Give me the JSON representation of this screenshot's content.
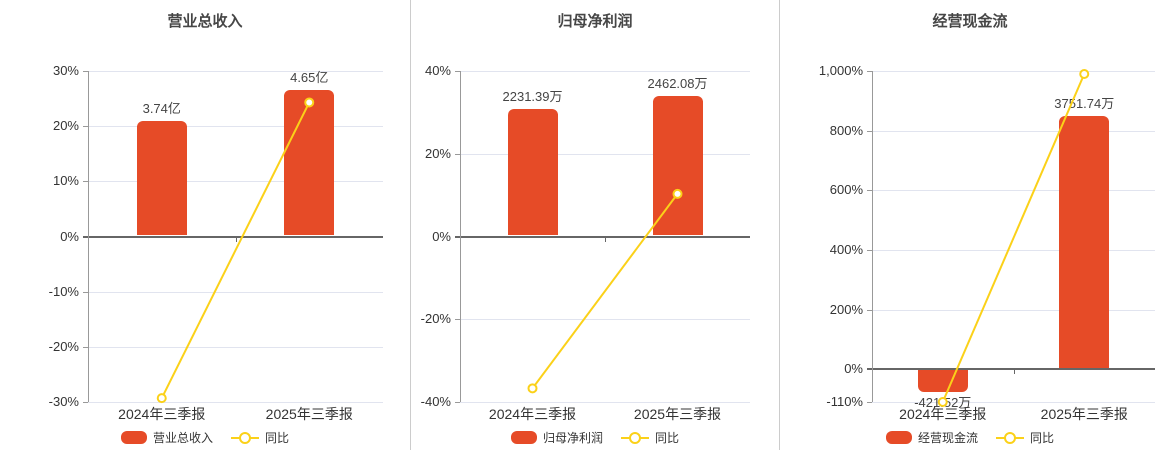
{
  "colors": {
    "bar": "#e64b27",
    "line": "#fbd119",
    "grid": "#e1e4ef",
    "zero_axis": "#666666",
    "axis": "#999999",
    "text": "#333333",
    "divider": "#cccccc",
    "marker_fill": "#ffffff"
  },
  "chart_data": [
    {
      "type": "bar+line",
      "title": "营业总收入",
      "categories": [
        "2024年三季报",
        "2025年三季报"
      ],
      "series": [
        {
          "name": "营业总收入",
          "type": "bar",
          "value_labels": [
            "3.74亿",
            "4.65亿"
          ],
          "plotted_pct": [
            21,
            26.6
          ]
        },
        {
          "name": "同比",
          "type": "line",
          "values_pct": [
            -29.3,
            24.3
          ]
        }
      ],
      "y_axis": {
        "min": -30,
        "max": 30,
        "ticks": [
          {
            "label": "30%",
            "v": 30
          },
          {
            "label": "20%",
            "v": 20
          },
          {
            "label": "10%",
            "v": 10
          },
          {
            "label": "0%",
            "v": 0
          },
          {
            "label": "-10%",
            "v": -10
          },
          {
            "label": "-20%",
            "v": -20
          },
          {
            "label": "-30%",
            "v": -30
          }
        ]
      }
    },
    {
      "type": "bar+line",
      "title": "归母净利润",
      "categories": [
        "2024年三季报",
        "2025年三季报"
      ],
      "series": [
        {
          "name": "归母净利润",
          "type": "bar",
          "value_labels": [
            "2231.39万",
            "2462.08万"
          ],
          "plotted_pct": [
            30.9,
            34
          ]
        },
        {
          "name": "同比",
          "type": "line",
          "values_pct": [
            -36.7,
            10.3
          ]
        }
      ],
      "y_axis": {
        "min": -40,
        "max": 40,
        "ticks": [
          {
            "label": "40%",
            "v": 40
          },
          {
            "label": "20%",
            "v": 20
          },
          {
            "label": "0%",
            "v": 0
          },
          {
            "label": "-20%",
            "v": -20
          },
          {
            "label": "-40%",
            "v": -40
          }
        ]
      }
    },
    {
      "type": "bar+line",
      "title": "经营现金流",
      "categories": [
        "2024年三季报",
        "2025年三季报"
      ],
      "series": [
        {
          "name": "经营现金流",
          "type": "bar",
          "value_labels": [
            "-421.52万",
            "3751.74万"
          ],
          "plotted_pct": [
            -77,
            850
          ]
        },
        {
          "name": "同比",
          "type": "line",
          "values_pct": [
            -110,
            990
          ]
        }
      ],
      "y_axis": {
        "min": -110,
        "max": 1000,
        "ticks": [
          {
            "label": "1,000%",
            "v": 1000
          },
          {
            "label": "800%",
            "v": 800
          },
          {
            "label": "600%",
            "v": 600
          },
          {
            "label": "400%",
            "v": 400
          },
          {
            "label": "200%",
            "v": 200
          },
          {
            "label": "0%",
            "v": 0
          },
          {
            "label": "-110%",
            "v": -110
          }
        ]
      }
    }
  ]
}
